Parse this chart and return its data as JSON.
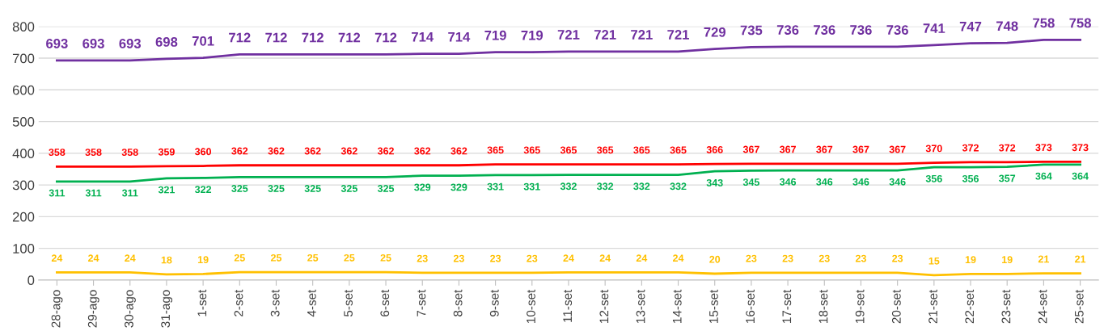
{
  "chart_data": {
    "type": "line",
    "categories": [
      "28-ago",
      "29-ago",
      "30-ago",
      "31-ago",
      "1-set",
      "2-set",
      "3-set",
      "4-set",
      "5-set",
      "6-set",
      "7-set",
      "8-set",
      "9-set",
      "10-set",
      "11-set",
      "12-set",
      "13-set",
      "14-set",
      "15-set",
      "16-set",
      "17-set",
      "18-set",
      "19-set",
      "20-set",
      "21-set",
      "22-set",
      "23-set",
      "24-set",
      "25-set"
    ],
    "series": [
      {
        "color": "#7030a0",
        "values": [
          693,
          693,
          693,
          698,
          701,
          712,
          712,
          712,
          712,
          712,
          714,
          714,
          719,
          719,
          721,
          721,
          721,
          721,
          729,
          735,
          736,
          736,
          736,
          736,
          741,
          747,
          748,
          758,
          758
        ]
      },
      {
        "color": "#ff0000",
        "values": [
          358,
          358,
          358,
          359,
          360,
          362,
          362,
          362,
          362,
          362,
          362,
          362,
          365,
          365,
          365,
          365,
          365,
          365,
          366,
          367,
          367,
          367,
          367,
          367,
          370,
          372,
          372,
          373,
          373
        ]
      },
      {
        "color": "#00b050",
        "values": [
          311,
          311,
          311,
          321,
          322,
          325,
          325,
          325,
          325,
          325,
          329,
          329,
          331,
          331,
          332,
          332,
          332,
          332,
          343,
          345,
          346,
          346,
          346,
          346,
          356,
          356,
          357,
          364,
          364
        ]
      },
      {
        "color": "#ffc000",
        "values": [
          24,
          24,
          24,
          18,
          19,
          25,
          25,
          25,
          25,
          25,
          23,
          23,
          23,
          23,
          24,
          24,
          24,
          24,
          20,
          23,
          23,
          23,
          23,
          23,
          15,
          19,
          19,
          21,
          21
        ]
      }
    ],
    "ylim": [
      0,
      800
    ],
    "yticks": [
      0,
      100,
      200,
      300,
      400,
      500,
      600,
      700,
      800
    ],
    "grid": "y",
    "data_labels": true,
    "marker": "none",
    "line_style": "solid",
    "legend": false
  }
}
